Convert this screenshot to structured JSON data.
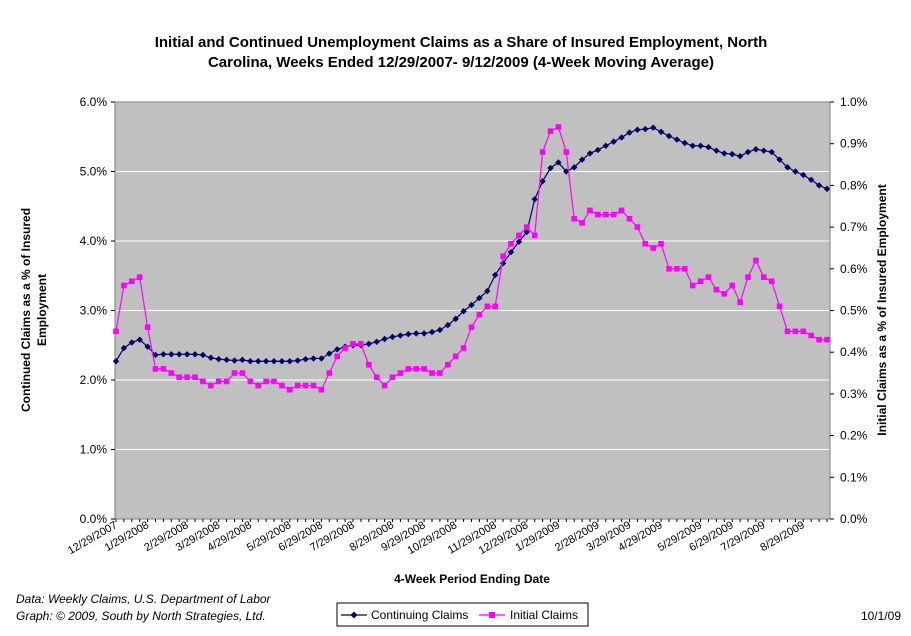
{
  "chart_data": {
    "type": "line",
    "title_lines": [
      "Initial and Continued Unemployment Claims as a Share of Insured Employment, North",
      "Carolina, Weeks Ended 12/29/2007- 9/12/2009 (4-Week Moving Average)"
    ],
    "xlabel": "4-Week Period Ending Date",
    "ylabel_left_lines": [
      "Continued Claims as a %  of Insured",
      "Employment"
    ],
    "ylabel_right": "Initial Claims as a % of Insured Employment",
    "ylim_left": [
      0,
      6
    ],
    "ylim_right": [
      0,
      1
    ],
    "y_ticks_left": [
      "0.0%",
      "1.0%",
      "2.0%",
      "3.0%",
      "4.0%",
      "5.0%",
      "6.0%"
    ],
    "y_ticks_right": [
      "0.0%",
      "0.1%",
      "0.2%",
      "0.3%",
      "0.4%",
      "0.5%",
      "0.6%",
      "0.7%",
      "0.8%",
      "0.9%",
      "1.0%"
    ],
    "x_tick_labels": [
      "12/29/2007",
      "1/29/2008",
      "2/29/2008",
      "3/29/2008",
      "4/29/2008",
      "5/29/2008",
      "6/29/2008",
      "7/29/2008",
      "8/29/2008",
      "9/29/2008",
      "10/29/2008",
      "11/29/2008",
      "12/29/2008",
      "1/29/2009",
      "2/28/2009",
      "3/29/2009",
      "4/29/2009",
      "5/29/2009",
      "6/29/2009",
      "7/29/2009",
      "8/29/2009"
    ],
    "x_tick_week_index": [
      0,
      4,
      9,
      13,
      17,
      22,
      26,
      30,
      35,
      39,
      43,
      48,
      52,
      56,
      61,
      65,
      69,
      74,
      78,
      82,
      87
    ],
    "grid": "horizontal",
    "legend_position": "bottom",
    "series": [
      {
        "name": "Continuing Claims",
        "axis": "left",
        "color": "#000066",
        "marker": "diamond",
        "values": [
          2.27,
          2.46,
          2.54,
          2.58,
          2.48,
          2.36,
          2.37,
          2.37,
          2.37,
          2.37,
          2.37,
          2.36,
          2.32,
          2.3,
          2.29,
          2.28,
          2.29,
          2.27,
          2.27,
          2.27,
          2.27,
          2.27,
          2.27,
          2.28,
          2.3,
          2.31,
          2.31,
          2.38,
          2.44,
          2.48,
          2.5,
          2.5,
          2.52,
          2.55,
          2.59,
          2.62,
          2.64,
          2.66,
          2.67,
          2.67,
          2.69,
          2.72,
          2.79,
          2.88,
          2.99,
          3.08,
          3.18,
          3.28,
          3.51,
          3.68,
          3.84,
          3.99,
          4.13,
          4.6,
          4.86,
          5.05,
          5.13,
          5.0,
          5.06,
          5.17,
          5.26,
          5.31,
          5.37,
          5.43,
          5.49,
          5.56,
          5.6,
          5.61,
          5.63,
          5.57,
          5.51,
          5.46,
          5.41,
          5.37,
          5.37,
          5.35,
          5.3,
          5.26,
          5.25,
          5.22,
          5.28,
          5.32,
          5.3,
          5.28,
          5.17,
          5.06,
          5.0,
          4.95,
          4.88,
          4.8,
          4.75
        ]
      },
      {
        "name": "Initial Claims",
        "axis": "right",
        "color": "#FF00FF",
        "marker": "square",
        "values": [
          0.45,
          0.56,
          0.57,
          0.58,
          0.46,
          0.36,
          0.36,
          0.35,
          0.34,
          0.34,
          0.34,
          0.33,
          0.32,
          0.33,
          0.33,
          0.35,
          0.35,
          0.33,
          0.32,
          0.33,
          0.33,
          0.32,
          0.31,
          0.32,
          0.32,
          0.32,
          0.31,
          0.35,
          0.39,
          0.41,
          0.42,
          0.42,
          0.37,
          0.34,
          0.32,
          0.34,
          0.35,
          0.36,
          0.36,
          0.36,
          0.35,
          0.35,
          0.37,
          0.39,
          0.41,
          0.46,
          0.49,
          0.51,
          0.51,
          0.63,
          0.66,
          0.68,
          0.7,
          0.68,
          0.88,
          0.93,
          0.94,
          0.88,
          0.72,
          0.71,
          0.74,
          0.73,
          0.73,
          0.73,
          0.74,
          0.72,
          0.7,
          0.66,
          0.65,
          0.66,
          0.6,
          0.6,
          0.6,
          0.56,
          0.57,
          0.58,
          0.55,
          0.54,
          0.56,
          0.52,
          0.58,
          0.62,
          0.58,
          0.57,
          0.51,
          0.45,
          0.45,
          0.45,
          0.44,
          0.43,
          0.43
        ]
      }
    ]
  },
  "notes": {
    "source": "Data:  Weekly Claims, U.S. Department of Labor",
    "credit": "Graph: © 2009, South by North Strategies, Ltd.",
    "date": "10/1/09"
  },
  "colors": {
    "plot_bg": "#C0C0C0",
    "grid": "#FFFFFF",
    "continuing": "#000066",
    "initial": "#FF00FF"
  }
}
